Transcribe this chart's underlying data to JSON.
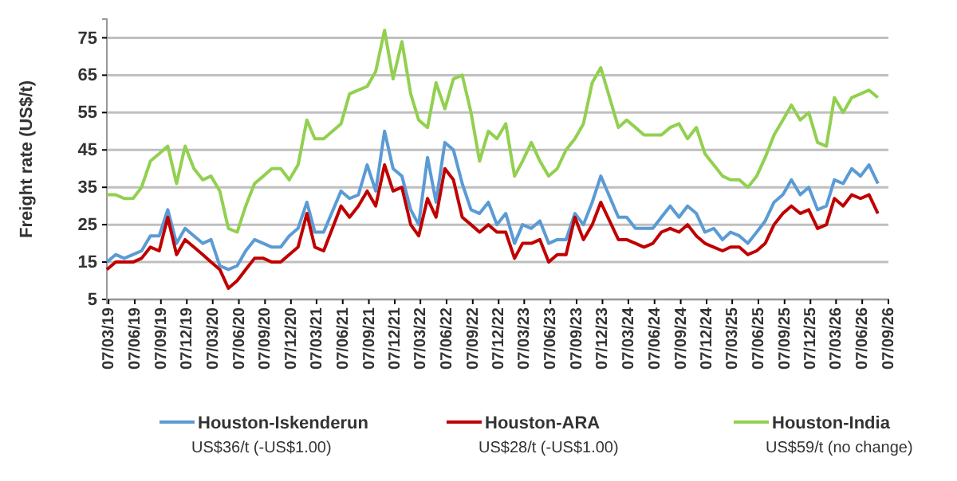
{
  "chart_data": {
    "type": "line",
    "ylabel": "Freight rate (US$/t)",
    "x": [
      "2019-03",
      "2019-04",
      "2019-05",
      "2019-06",
      "2019-07",
      "2019-08",
      "2019-09",
      "2019-10",
      "2019-11",
      "2019-12",
      "2020-01",
      "2020-02",
      "2020-03",
      "2020-04",
      "2020-05",
      "2020-06",
      "2020-07",
      "2020-08",
      "2020-09",
      "2020-10",
      "2020-11",
      "2020-12",
      "2021-01",
      "2021-02",
      "2021-03",
      "2021-04",
      "2021-06",
      "2021-07",
      "2021-08",
      "2021-09",
      "2021-10",
      "2021-11",
      "2021-12",
      "2022-01",
      "2022-02",
      "2022-03",
      "2022-04",
      "2022-05",
      "2022-06",
      "2022-07",
      "2022-08",
      "2022-09",
      "2022-10",
      "2022-11",
      "2022-12",
      "2023-01",
      "2023-02",
      "2023-03",
      "2023-04",
      "2023-05",
      "2023-06",
      "2023-07",
      "2023-08",
      "2023-09",
      "2023-10",
      "2023-11",
      "2023-12",
      "2024-02",
      "2024-03",
      "2024-04",
      "2024-05",
      "2024-06",
      "2024-07",
      "2024-08",
      "2024-09",
      "2024-10",
      "2024-11",
      "2024-12",
      "2025-01",
      "2025-02",
      "2025-03",
      "2025-04",
      "2025-05",
      "2025-06",
      "2025-07",
      "2025-08",
      "2025-09",
      "2025-10",
      "2025-11",
      "2025-12",
      "2026-01",
      "2026-02",
      "2026-03",
      "2026-04",
      "2026-05",
      "2026-06",
      "2026-07",
      "2026-08"
    ],
    "series": [
      {
        "name": "Houston-Iskenderun",
        "color": "#5b9bd5",
        "values": [
          15,
          17,
          16,
          17,
          18,
          22,
          22,
          29,
          20,
          24,
          22,
          20,
          21,
          14,
          13,
          14,
          18,
          21,
          20,
          19,
          19,
          22,
          24,
          31,
          23,
          23,
          34,
          32,
          33,
          41,
          34,
          50,
          40,
          38,
          29,
          25,
          43,
          31,
          47,
          45,
          36,
          29,
          28,
          31,
          25,
          28,
          20,
          25,
          24,
          26,
          20,
          21,
          21,
          28,
          25,
          31,
          38,
          27,
          27,
          24,
          24,
          24,
          27,
          30,
          27,
          30,
          28,
          23,
          24,
          21,
          23,
          22,
          20,
          23,
          26,
          31,
          33,
          37,
          33,
          35,
          29,
          30,
          37,
          36,
          40,
          38,
          41,
          36
        ]
      },
      {
        "name": "Houston-ARA",
        "color": "#c00000",
        "values": [
          13,
          15,
          15,
          15,
          16,
          19,
          18,
          27,
          17,
          21,
          19,
          17,
          15,
          13,
          8,
          10,
          13,
          16,
          16,
          15,
          15,
          17,
          19,
          28,
          19,
          18,
          30,
          27,
          30,
          34,
          30,
          41,
          34,
          35,
          25,
          22,
          32,
          27,
          40,
          37,
          27,
          25,
          23,
          25,
          23,
          23,
          16,
          20,
          20,
          21,
          15,
          17,
          17,
          27,
          21,
          25,
          31,
          21,
          21,
          20,
          19,
          20,
          23,
          24,
          23,
          25,
          22,
          20,
          19,
          18,
          19,
          19,
          17,
          18,
          20,
          25,
          28,
          30,
          28,
          29,
          24,
          25,
          32,
          30,
          33,
          32,
          33,
          28
        ]
      },
      {
        "name": "Houston-India",
        "color": "#92d050",
        "values": [
          33,
          33,
          32,
          32,
          35,
          42,
          44,
          46,
          36,
          46,
          40,
          37,
          38,
          34,
          24,
          23,
          30,
          36,
          38,
          40,
          40,
          37,
          41,
          53,
          48,
          48,
          52,
          60,
          61,
          62,
          66,
          77,
          64,
          74,
          60,
          53,
          51,
          63,
          56,
          64,
          65,
          55,
          42,
          50,
          48,
          52,
          38,
          42,
          47,
          42,
          38,
          40,
          45,
          48,
          52,
          63,
          67,
          51,
          53,
          51,
          49,
          49,
          49,
          51,
          52,
          48,
          51,
          44,
          41,
          38,
          37,
          37,
          35,
          38,
          43,
          49,
          53,
          57,
          53,
          55,
          47,
          46,
          59,
          55,
          59,
          60,
          61,
          59
        ]
      }
    ],
    "xlim": [
      "2019-03-01",
      "2026-09-07"
    ],
    "xticks": [
      {
        "value": "2019-03-07",
        "label": "07/03/19"
      },
      {
        "value": "2019-06-07",
        "label": "07/06/19"
      },
      {
        "value": "2019-09-07",
        "label": "07/09/19"
      },
      {
        "value": "2019-12-07",
        "label": "07/12/19"
      },
      {
        "value": "2020-03-07",
        "label": "07/03/20"
      },
      {
        "value": "2020-06-07",
        "label": "07/06/20"
      },
      {
        "value": "2020-09-07",
        "label": "07/09/20"
      },
      {
        "value": "2020-12-07",
        "label": "07/12/20"
      },
      {
        "value": "2021-03-07",
        "label": "07/03/21"
      },
      {
        "value": "2021-06-07",
        "label": "07/06/21"
      },
      {
        "value": "2021-09-07",
        "label": "07/09/21"
      },
      {
        "value": "2021-12-07",
        "label": "07/12/21"
      },
      {
        "value": "2022-03-07",
        "label": "07/03/22"
      },
      {
        "value": "2022-06-07",
        "label": "07/06/22"
      },
      {
        "value": "2022-09-07",
        "label": "07/09/22"
      },
      {
        "value": "2022-12-07",
        "label": "07/12/22"
      },
      {
        "value": "2023-03-07",
        "label": "07/03/23"
      },
      {
        "value": "2023-06-07",
        "label": "07/06/23"
      },
      {
        "value": "2023-09-07",
        "label": "07/09/23"
      },
      {
        "value": "2023-12-07",
        "label": "07/12/23"
      },
      {
        "value": "2024-03-07",
        "label": "07/03/24"
      },
      {
        "value": "2024-06-07",
        "label": "07/06/24"
      },
      {
        "value": "2024-09-07",
        "label": "07/09/24"
      },
      {
        "value": "2024-12-07",
        "label": "07/12/24"
      },
      {
        "value": "2025-03-07",
        "label": "07/03/25"
      },
      {
        "value": "2025-06-07",
        "label": "07/06/25"
      },
      {
        "value": "2025-09-07",
        "label": "07/09/25"
      },
      {
        "value": "2025-12-07",
        "label": "07/12/25"
      },
      {
        "value": "2026-03-07",
        "label": "07/03/26"
      },
      {
        "value": "2026-06-07",
        "label": "07/06/26"
      },
      {
        "value": "2026-09-07",
        "label": "07/09/26"
      }
    ],
    "ylim": [
      5,
      80
    ],
    "yticks": [
      5,
      15,
      25,
      35,
      45,
      55,
      65,
      75
    ],
    "grid": "y",
    "legend": "bottom",
    "line_style": "solid",
    "annotations": [
      "US$36/t (-US$1.00)",
      "US$28/t (-US$1.00)",
      "US$59/t (no change)"
    ]
  }
}
